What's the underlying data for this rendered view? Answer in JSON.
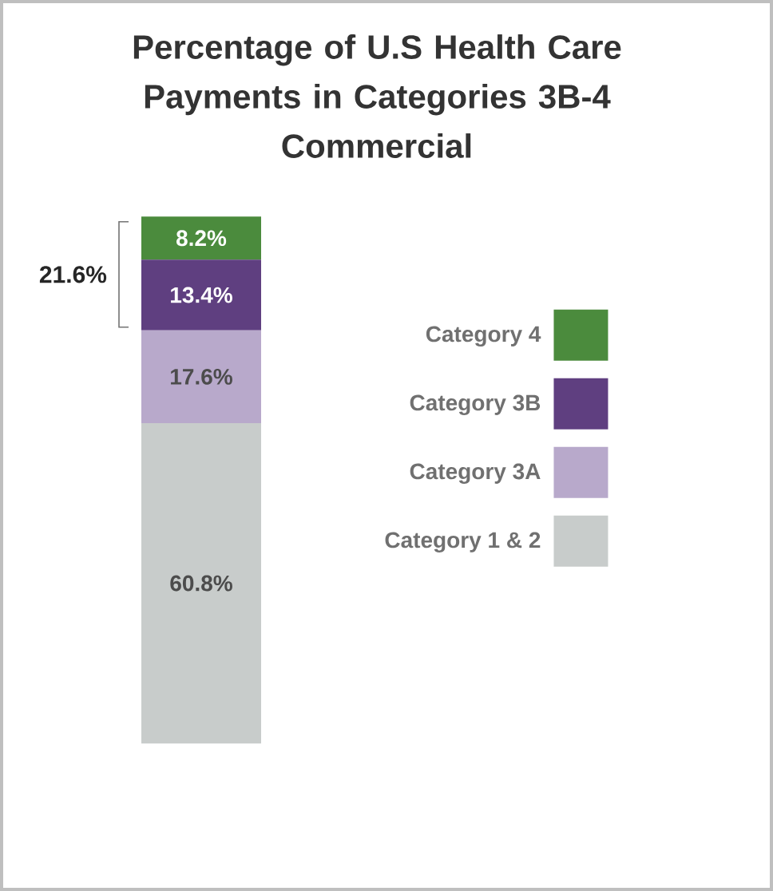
{
  "chart_data": {
    "type": "bar",
    "stacked": true,
    "title": "Percentage of U.S Health Care Payments in Categories 3B-4",
    "subtitle": "Commercial",
    "categories": [
      null
    ],
    "series": [
      {
        "name": "Category 1 & 2",
        "color": "#c8cccb",
        "values": [
          60.8
        ],
        "value_labels": [
          "60.8%"
        ]
      },
      {
        "name": "Category 3A",
        "color": "#b8a9cb",
        "values": [
          17.6
        ],
        "value_labels": [
          "17.6%"
        ]
      },
      {
        "name": "Category 3B",
        "color": "#5f3f80",
        "values": [
          13.4
        ],
        "value_labels": [
          "13.4%"
        ]
      },
      {
        "name": "Category 4",
        "color": "#4b8b3d",
        "values": [
          8.2
        ],
        "value_labels": [
          "8.2%"
        ]
      }
    ],
    "annotations": [
      "21.6%"
    ],
    "legend": "right"
  }
}
